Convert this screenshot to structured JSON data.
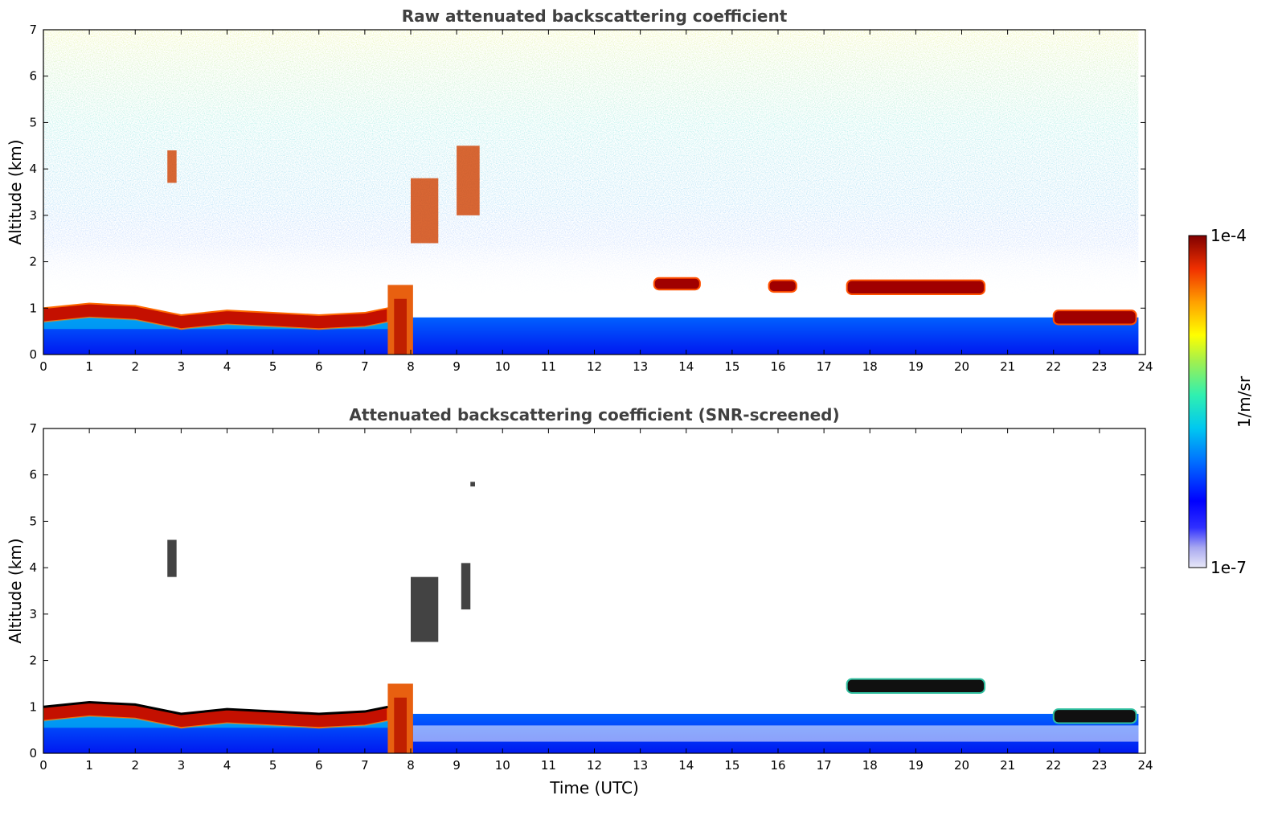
{
  "chart_data": [
    {
      "type": "heatmap",
      "title": "Raw attenuated backscattering coefficient",
      "xlabel": "",
      "ylabel": "Altitude (km)",
      "xlim": [
        0,
        24
      ],
      "ylim": [
        0,
        7
      ],
      "x_ticks": [
        "0",
        "1",
        "2",
        "3",
        "4",
        "5",
        "6",
        "7",
        "8",
        "9",
        "10",
        "11",
        "12",
        "13",
        "14",
        "15",
        "16",
        "17",
        "18",
        "19",
        "20",
        "21",
        "22",
        "23",
        "24"
      ],
      "y_ticks": [
        "0",
        "1",
        "2",
        "3",
        "4",
        "5",
        "6",
        "7"
      ],
      "screened": false,
      "features": [
        {
          "kind": "boundary_layer",
          "x": [
            0,
            1,
            2,
            3,
            4,
            5,
            6,
            7,
            7.5
          ],
          "top_km": [
            1.0,
            1.1,
            1.05,
            0.85,
            0.95,
            0.9,
            0.85,
            0.9,
            1.0
          ]
        },
        {
          "kind": "thick_cloud",
          "x_range": [
            7.5,
            8.05
          ],
          "alt_range": [
            0,
            1.5
          ]
        },
        {
          "kind": "cloud_layer",
          "x_range": [
            17.5,
            20.5
          ],
          "alt_range": [
            1.3,
            1.6
          ]
        },
        {
          "kind": "cloud_layer",
          "x_range": [
            22.0,
            23.8
          ],
          "alt_range": [
            0.65,
            0.95
          ]
        },
        {
          "kind": "cloud_layer",
          "x_range": [
            13.3,
            14.3
          ],
          "alt_range": [
            1.4,
            1.65
          ]
        },
        {
          "kind": "cloud_layer",
          "x_range": [
            15.8,
            16.4
          ],
          "alt_range": [
            1.35,
            1.6
          ]
        },
        {
          "kind": "elevated_cloud",
          "x_range": [
            8.0,
            8.6
          ],
          "alt_range": [
            2.4,
            3.8
          ]
        },
        {
          "kind": "elevated_cloud",
          "x_range": [
            9.0,
            9.5
          ],
          "alt_range": [
            3.0,
            4.5
          ]
        },
        {
          "kind": "elevated_cloud",
          "x_range": [
            2.7,
            2.9
          ],
          "alt_range": [
            3.7,
            4.4
          ]
        }
      ]
    },
    {
      "type": "heatmap",
      "title": "Attenuated backscattering coefficient (SNR-screened)",
      "xlabel": "Time (UTC)",
      "ylabel": "Altitude (km)",
      "xlim": [
        0,
        24
      ],
      "ylim": [
        0,
        7
      ],
      "x_ticks": [
        "0",
        "1",
        "2",
        "3",
        "4",
        "5",
        "6",
        "7",
        "8",
        "9",
        "10",
        "11",
        "12",
        "13",
        "14",
        "15",
        "16",
        "17",
        "18",
        "19",
        "20",
        "21",
        "22",
        "23",
        "24"
      ],
      "y_ticks": [
        "0",
        "1",
        "2",
        "3",
        "4",
        "5",
        "6",
        "7"
      ],
      "screened": true,
      "features": [
        {
          "kind": "boundary_layer",
          "x": [
            0,
            1,
            2,
            3,
            4,
            5,
            6,
            7,
            7.5
          ],
          "top_km": [
            1.0,
            1.1,
            1.05,
            0.85,
            0.95,
            0.9,
            0.85,
            0.9,
            1.0
          ]
        },
        {
          "kind": "thick_cloud",
          "x_range": [
            7.5,
            8.05
          ],
          "alt_range": [
            0,
            1.5
          ]
        },
        {
          "kind": "cloud_layer",
          "x_range": [
            17.5,
            20.5
          ],
          "alt_range": [
            1.3,
            1.6
          ]
        },
        {
          "kind": "cloud_layer",
          "x_range": [
            22.0,
            23.8
          ],
          "alt_range": [
            0.65,
            0.95
          ]
        },
        {
          "kind": "elevated_cloud",
          "x_range": [
            8.0,
            8.6
          ],
          "alt_range": [
            2.4,
            3.8
          ]
        },
        {
          "kind": "elevated_cloud",
          "x_range": [
            9.1,
            9.3
          ],
          "alt_range": [
            3.1,
            4.1
          ]
        },
        {
          "kind": "elevated_cloud",
          "x_range": [
            2.7,
            2.9
          ],
          "alt_range": [
            3.8,
            4.6
          ]
        },
        {
          "kind": "elevated_cloud",
          "x_range": [
            9.3,
            9.4
          ],
          "alt_range": [
            5.75,
            5.85
          ]
        }
      ]
    }
  ],
  "colorbar": {
    "label": "1/m/sr",
    "max_label": "1e-4",
    "min_label": "1e-7",
    "scale": "log",
    "colors": [
      "#e8e8f8",
      "#a8a8f0",
      "#6060ff",
      "#0000ff",
      "#0040ff",
      "#0090ff",
      "#00d0e0",
      "#40f0a0",
      "#a0f050",
      "#ffff00",
      "#ffb000",
      "#ff5000",
      "#e00000",
      "#800000"
    ]
  }
}
